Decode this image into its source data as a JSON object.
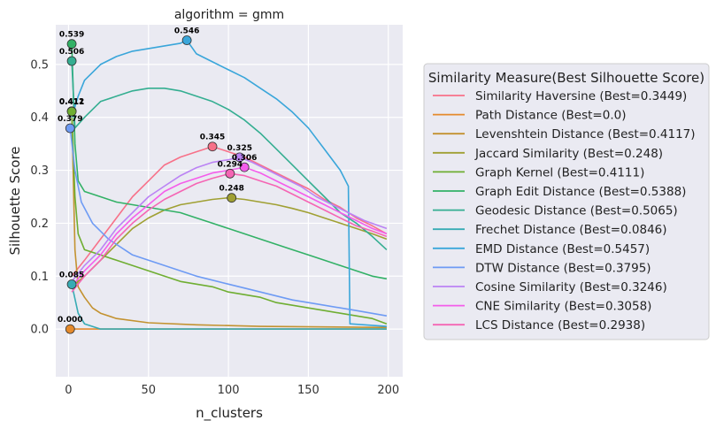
{
  "chart_data": {
    "type": "line",
    "title": "algorithm = gmm",
    "xlabel": "n_clusters",
    "ylabel": "Silhouette Score",
    "xlim": [
      -8,
      209
    ],
    "ylim": [
      -0.09,
      0.575
    ],
    "xticks": [
      0,
      50,
      100,
      150,
      200
    ],
    "xtick_labels": [
      "0",
      "50",
      "100",
      "150",
      "200"
    ],
    "yticks": [
      0.0,
      0.1,
      0.2,
      0.3,
      0.4,
      0.5
    ],
    "ytick_labels": [
      "0.0",
      "0.1",
      "0.2",
      "0.3",
      "0.4",
      "0.5"
    ],
    "grid": true,
    "legend_position": "right",
    "legend_title": "Similarity Measure(Best Silhouette Score)",
    "series": [
      {
        "name": "Similarity Haversine (Best=0.3449)",
        "color": "#f77189",
        "best_x": 90,
        "best": 0.3449,
        "best_label": "0.345",
        "points": [
          [
            2,
            0.1
          ],
          [
            10,
            0.13
          ],
          [
            20,
            0.17
          ],
          [
            30,
            0.21
          ],
          [
            40,
            0.25
          ],
          [
            50,
            0.28
          ],
          [
            60,
            0.31
          ],
          [
            70,
            0.325
          ],
          [
            80,
            0.335
          ],
          [
            90,
            0.345
          ],
          [
            100,
            0.335
          ],
          [
            110,
            0.325
          ],
          [
            120,
            0.31
          ],
          [
            130,
            0.295
          ],
          [
            140,
            0.28
          ],
          [
            150,
            0.265
          ],
          [
            160,
            0.245
          ],
          [
            170,
            0.23
          ],
          [
            180,
            0.21
          ],
          [
            190,
            0.195
          ],
          [
            199,
            0.18
          ]
        ]
      },
      {
        "name": "Path Distance (Best=0.0)",
        "color": "#e58a2c",
        "best_x": 1,
        "best": 0.0,
        "best_label": "0.000",
        "points": [
          [
            1,
            0.0
          ],
          [
            199,
            0.0
          ]
        ]
      },
      {
        "name": "Levenshtein Distance (Best=0.4117)",
        "color": "#c39230",
        "best_x": 2,
        "best": 0.4117,
        "best_label": "0.412",
        "points": [
          [
            2,
            0.4117
          ],
          [
            4,
            0.15
          ],
          [
            6,
            0.08
          ],
          [
            10,
            0.06
          ],
          [
            15,
            0.04
          ],
          [
            20,
            0.03
          ],
          [
            30,
            0.02
          ],
          [
            50,
            0.012
          ],
          [
            80,
            0.008
          ],
          [
            120,
            0.005
          ],
          [
            160,
            0.004
          ],
          [
            199,
            0.003
          ]
        ]
      },
      {
        "name": "Jaccard Similarity (Best=0.248)",
        "color": "#a0a033",
        "best_x": 102,
        "best": 0.248,
        "best_label": "0.248",
        "points": [
          [
            2,
            0.08
          ],
          [
            10,
            0.1
          ],
          [
            20,
            0.13
          ],
          [
            30,
            0.16
          ],
          [
            40,
            0.19
          ],
          [
            50,
            0.21
          ],
          [
            60,
            0.225
          ],
          [
            70,
            0.235
          ],
          [
            80,
            0.24
          ],
          [
            90,
            0.245
          ],
          [
            100,
            0.248
          ],
          [
            110,
            0.245
          ],
          [
            120,
            0.24
          ],
          [
            130,
            0.235
          ],
          [
            140,
            0.228
          ],
          [
            150,
            0.22
          ],
          [
            160,
            0.21
          ],
          [
            170,
            0.2
          ],
          [
            180,
            0.19
          ],
          [
            190,
            0.18
          ],
          [
            199,
            0.17
          ]
        ]
      },
      {
        "name": "Graph Kernel (Best=0.4111)",
        "color": "#6fae32",
        "best_x": 2,
        "best": 0.4111,
        "best_label": "0.411",
        "points": [
          [
            2,
            0.4111
          ],
          [
            4,
            0.25
          ],
          [
            6,
            0.18
          ],
          [
            10,
            0.15
          ],
          [
            20,
            0.14
          ],
          [
            30,
            0.13
          ],
          [
            40,
            0.12
          ],
          [
            50,
            0.11
          ],
          [
            60,
            0.1
          ],
          [
            70,
            0.09
          ],
          [
            80,
            0.085
          ],
          [
            90,
            0.08
          ],
          [
            100,
            0.07
          ],
          [
            110,
            0.065
          ],
          [
            120,
            0.06
          ],
          [
            130,
            0.05
          ],
          [
            140,
            0.045
          ],
          [
            150,
            0.04
          ],
          [
            160,
            0.035
          ],
          [
            170,
            0.03
          ],
          [
            180,
            0.025
          ],
          [
            190,
            0.02
          ],
          [
            199,
            0.01
          ]
        ]
      },
      {
        "name": "Graph Edit Distance (Best=0.5388)",
        "color": "#32b166",
        "best_x": 2,
        "best": 0.5388,
        "best_label": "0.539",
        "points": [
          [
            2,
            0.5388
          ],
          [
            4,
            0.35
          ],
          [
            6,
            0.28
          ],
          [
            10,
            0.26
          ],
          [
            20,
            0.25
          ],
          [
            30,
            0.24
          ],
          [
            40,
            0.235
          ],
          [
            50,
            0.23
          ],
          [
            60,
            0.225
          ],
          [
            70,
            0.22
          ],
          [
            80,
            0.21
          ],
          [
            90,
            0.2
          ],
          [
            100,
            0.19
          ],
          [
            110,
            0.18
          ],
          [
            120,
            0.17
          ],
          [
            130,
            0.16
          ],
          [
            140,
            0.15
          ],
          [
            150,
            0.14
          ],
          [
            160,
            0.13
          ],
          [
            170,
            0.12
          ],
          [
            180,
            0.11
          ],
          [
            190,
            0.1
          ],
          [
            199,
            0.095
          ]
        ]
      },
      {
        "name": "Geodesic Distance (Best=0.5065)",
        "color": "#34ae91",
        "best_x": 2,
        "best": 0.5065,
        "best_label": "0.506",
        "points": [
          [
            2,
            0.5065
          ],
          [
            4,
            0.38
          ],
          [
            10,
            0.4
          ],
          [
            20,
            0.43
          ],
          [
            30,
            0.44
          ],
          [
            40,
            0.45
          ],
          [
            50,
            0.455
          ],
          [
            60,
            0.455
          ],
          [
            70,
            0.45
          ],
          [
            80,
            0.44
          ],
          [
            90,
            0.43
          ],
          [
            100,
            0.415
          ],
          [
            110,
            0.395
          ],
          [
            120,
            0.37
          ],
          [
            130,
            0.34
          ],
          [
            140,
            0.31
          ],
          [
            150,
            0.28
          ],
          [
            160,
            0.25
          ],
          [
            170,
            0.22
          ],
          [
            180,
            0.2
          ],
          [
            190,
            0.175
          ],
          [
            199,
            0.15
          ]
        ]
      },
      {
        "name": "Frechet Distance (Best=0.0846)",
        "color": "#37abb4",
        "best_x": 2,
        "best": 0.0846,
        "best_label": "0.085",
        "points": [
          [
            2,
            0.0846
          ],
          [
            6,
            0.03
          ],
          [
            10,
            0.01
          ],
          [
            20,
            0.0
          ],
          [
            60,
            0.0
          ],
          [
            100,
            0.0
          ],
          [
            150,
            0.0
          ],
          [
            199,
            0.0
          ]
        ]
      },
      {
        "name": "EMD Distance (Best=0.5457)",
        "color": "#3aa6da",
        "best_x": 74,
        "best": 0.5457,
        "best_label": "0.546",
        "points": [
          [
            2,
            0.4
          ],
          [
            6,
            0.44
          ],
          [
            10,
            0.47
          ],
          [
            20,
            0.5
          ],
          [
            30,
            0.515
          ],
          [
            40,
            0.525
          ],
          [
            50,
            0.53
          ],
          [
            60,
            0.535
          ],
          [
            70,
            0.54
          ],
          [
            74,
            0.5457
          ],
          [
            80,
            0.52
          ],
          [
            90,
            0.505
          ],
          [
            100,
            0.49
          ],
          [
            110,
            0.475
          ],
          [
            120,
            0.455
          ],
          [
            130,
            0.435
          ],
          [
            140,
            0.41
          ],
          [
            150,
            0.38
          ],
          [
            160,
            0.34
          ],
          [
            170,
            0.3
          ],
          [
            175,
            0.27
          ],
          [
            176,
            0.01
          ],
          [
            199,
            0.005
          ]
        ]
      },
      {
        "name": "DTW Distance (Best=0.3795)",
        "color": "#6e9bf4",
        "best_x": 1,
        "best": 0.3795,
        "best_label": "0.379",
        "points": [
          [
            1,
            0.3795
          ],
          [
            4,
            0.3
          ],
          [
            8,
            0.24
          ],
          [
            15,
            0.2
          ],
          [
            25,
            0.17
          ],
          [
            40,
            0.14
          ],
          [
            60,
            0.12
          ],
          [
            80,
            0.1
          ],
          [
            100,
            0.085
          ],
          [
            120,
            0.07
          ],
          [
            140,
            0.055
          ],
          [
            160,
            0.045
          ],
          [
            180,
            0.035
          ],
          [
            199,
            0.025
          ]
        ]
      },
      {
        "name": "Cosine Similarity (Best=0.3246)",
        "color": "#bb83f4",
        "best_x": 107,
        "best": 0.3246,
        "best_label": "0.325",
        "points": [
          [
            2,
            0.09
          ],
          [
            10,
            0.12
          ],
          [
            20,
            0.15
          ],
          [
            30,
            0.19
          ],
          [
            40,
            0.22
          ],
          [
            50,
            0.25
          ],
          [
            60,
            0.27
          ],
          [
            70,
            0.29
          ],
          [
            80,
            0.305
          ],
          [
            90,
            0.315
          ],
          [
            100,
            0.32
          ],
          [
            107,
            0.3246
          ],
          [
            115,
            0.315
          ],
          [
            125,
            0.3
          ],
          [
            135,
            0.285
          ],
          [
            145,
            0.27
          ],
          [
            155,
            0.25
          ],
          [
            165,
            0.235
          ],
          [
            175,
            0.22
          ],
          [
            185,
            0.205
          ],
          [
            199,
            0.19
          ]
        ]
      },
      {
        "name": "CNE Similarity (Best=0.3058)",
        "color": "#f45deb",
        "best_x": 110,
        "best": 0.3058,
        "best_label": "0.306",
        "points": [
          [
            2,
            0.08
          ],
          [
            10,
            0.11
          ],
          [
            20,
            0.14
          ],
          [
            30,
            0.18
          ],
          [
            40,
            0.21
          ],
          [
            50,
            0.235
          ],
          [
            60,
            0.26
          ],
          [
            70,
            0.275
          ],
          [
            80,
            0.285
          ],
          [
            90,
            0.295
          ],
          [
            100,
            0.3
          ],
          [
            110,
            0.3058
          ],
          [
            120,
            0.295
          ],
          [
            130,
            0.28
          ],
          [
            140,
            0.265
          ],
          [
            150,
            0.25
          ],
          [
            160,
            0.235
          ],
          [
            170,
            0.22
          ],
          [
            180,
            0.205
          ],
          [
            190,
            0.19
          ],
          [
            199,
            0.18
          ]
        ]
      },
      {
        "name": "LCS Distance (Best=0.2938)",
        "color": "#f565b4",
        "best_x": 101,
        "best": 0.2938,
        "best_label": "0.294",
        "points": [
          [
            2,
            0.07
          ],
          [
            10,
            0.1
          ],
          [
            20,
            0.13
          ],
          [
            30,
            0.17
          ],
          [
            40,
            0.2
          ],
          [
            50,
            0.225
          ],
          [
            60,
            0.245
          ],
          [
            70,
            0.26
          ],
          [
            80,
            0.275
          ],
          [
            90,
            0.285
          ],
          [
            101,
            0.2938
          ],
          [
            110,
            0.29
          ],
          [
            120,
            0.28
          ],
          [
            130,
            0.27
          ],
          [
            140,
            0.255
          ],
          [
            150,
            0.24
          ],
          [
            160,
            0.225
          ],
          [
            170,
            0.21
          ],
          [
            180,
            0.195
          ],
          [
            190,
            0.185
          ],
          [
            199,
            0.175
          ]
        ]
      }
    ]
  }
}
